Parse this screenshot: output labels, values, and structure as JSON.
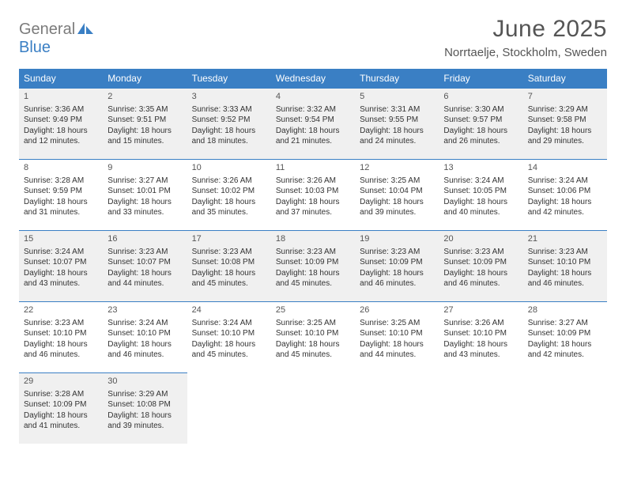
{
  "brand": {
    "text1": "General",
    "text2": "Blue",
    "color1": "#7b7b7b",
    "color2": "#3a7fc4"
  },
  "title": "June 2025",
  "location": "Norrtaelje, Stockholm, Sweden",
  "colors": {
    "header_bg": "#3a7fc4",
    "header_fg": "#ffffff",
    "cell_border": "#3a7fc4",
    "shaded_bg": "#f0f0f0",
    "text": "#333333"
  },
  "weekdays": [
    "Sunday",
    "Monday",
    "Tuesday",
    "Wednesday",
    "Thursday",
    "Friday",
    "Saturday"
  ],
  "days": [
    {
      "n": "1",
      "sunrise": "3:36 AM",
      "sunset": "9:49 PM",
      "dl": "18 hours and 12 minutes."
    },
    {
      "n": "2",
      "sunrise": "3:35 AM",
      "sunset": "9:51 PM",
      "dl": "18 hours and 15 minutes."
    },
    {
      "n": "3",
      "sunrise": "3:33 AM",
      "sunset": "9:52 PM",
      "dl": "18 hours and 18 minutes."
    },
    {
      "n": "4",
      "sunrise": "3:32 AM",
      "sunset": "9:54 PM",
      "dl": "18 hours and 21 minutes."
    },
    {
      "n": "5",
      "sunrise": "3:31 AM",
      "sunset": "9:55 PM",
      "dl": "18 hours and 24 minutes."
    },
    {
      "n": "6",
      "sunrise": "3:30 AM",
      "sunset": "9:57 PM",
      "dl": "18 hours and 26 minutes."
    },
    {
      "n": "7",
      "sunrise": "3:29 AM",
      "sunset": "9:58 PM",
      "dl": "18 hours and 29 minutes."
    },
    {
      "n": "8",
      "sunrise": "3:28 AM",
      "sunset": "9:59 PM",
      "dl": "18 hours and 31 minutes."
    },
    {
      "n": "9",
      "sunrise": "3:27 AM",
      "sunset": "10:01 PM",
      "dl": "18 hours and 33 minutes."
    },
    {
      "n": "10",
      "sunrise": "3:26 AM",
      "sunset": "10:02 PM",
      "dl": "18 hours and 35 minutes."
    },
    {
      "n": "11",
      "sunrise": "3:26 AM",
      "sunset": "10:03 PM",
      "dl": "18 hours and 37 minutes."
    },
    {
      "n": "12",
      "sunrise": "3:25 AM",
      "sunset": "10:04 PM",
      "dl": "18 hours and 39 minutes."
    },
    {
      "n": "13",
      "sunrise": "3:24 AM",
      "sunset": "10:05 PM",
      "dl": "18 hours and 40 minutes."
    },
    {
      "n": "14",
      "sunrise": "3:24 AM",
      "sunset": "10:06 PM",
      "dl": "18 hours and 42 minutes."
    },
    {
      "n": "15",
      "sunrise": "3:24 AM",
      "sunset": "10:07 PM",
      "dl": "18 hours and 43 minutes."
    },
    {
      "n": "16",
      "sunrise": "3:23 AM",
      "sunset": "10:07 PM",
      "dl": "18 hours and 44 minutes."
    },
    {
      "n": "17",
      "sunrise": "3:23 AM",
      "sunset": "10:08 PM",
      "dl": "18 hours and 45 minutes."
    },
    {
      "n": "18",
      "sunrise": "3:23 AM",
      "sunset": "10:09 PM",
      "dl": "18 hours and 45 minutes."
    },
    {
      "n": "19",
      "sunrise": "3:23 AM",
      "sunset": "10:09 PM",
      "dl": "18 hours and 46 minutes."
    },
    {
      "n": "20",
      "sunrise": "3:23 AM",
      "sunset": "10:09 PM",
      "dl": "18 hours and 46 minutes."
    },
    {
      "n": "21",
      "sunrise": "3:23 AM",
      "sunset": "10:10 PM",
      "dl": "18 hours and 46 minutes."
    },
    {
      "n": "22",
      "sunrise": "3:23 AM",
      "sunset": "10:10 PM",
      "dl": "18 hours and 46 minutes."
    },
    {
      "n": "23",
      "sunrise": "3:24 AM",
      "sunset": "10:10 PM",
      "dl": "18 hours and 46 minutes."
    },
    {
      "n": "24",
      "sunrise": "3:24 AM",
      "sunset": "10:10 PM",
      "dl": "18 hours and 45 minutes."
    },
    {
      "n": "25",
      "sunrise": "3:25 AM",
      "sunset": "10:10 PM",
      "dl": "18 hours and 45 minutes."
    },
    {
      "n": "26",
      "sunrise": "3:25 AM",
      "sunset": "10:10 PM",
      "dl": "18 hours and 44 minutes."
    },
    {
      "n": "27",
      "sunrise": "3:26 AM",
      "sunset": "10:10 PM",
      "dl": "18 hours and 43 minutes."
    },
    {
      "n": "28",
      "sunrise": "3:27 AM",
      "sunset": "10:09 PM",
      "dl": "18 hours and 42 minutes."
    },
    {
      "n": "29",
      "sunrise": "3:28 AM",
      "sunset": "10:09 PM",
      "dl": "18 hours and 41 minutes."
    },
    {
      "n": "30",
      "sunrise": "3:29 AM",
      "sunset": "10:08 PM",
      "dl": "18 hours and 39 minutes."
    }
  ],
  "labels": {
    "sunrise": "Sunrise:",
    "sunset": "Sunset:",
    "daylight": "Daylight:"
  },
  "layout": {
    "start_weekday": 0,
    "rows": 5,
    "cols": 7
  }
}
